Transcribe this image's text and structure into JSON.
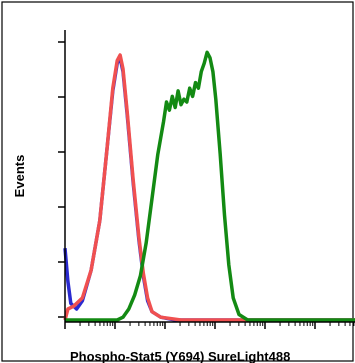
{
  "chart_data": {
    "type": "line",
    "xlabel": "Phospho-Stat5 (Y694) SureLight488",
    "ylabel": "Events",
    "xlim": [
      0,
      1
    ],
    "ylim": [
      0,
      1
    ],
    "grid": false,
    "series": [
      {
        "color": "#2a2ad0",
        "points": [
          [
            0.0,
            0.26
          ],
          [
            0.01,
            0.14
          ],
          [
            0.02,
            0.06
          ],
          [
            0.04,
            0.04
          ],
          [
            0.06,
            0.07
          ],
          [
            0.09,
            0.18
          ],
          [
            0.12,
            0.36
          ],
          [
            0.145,
            0.62
          ],
          [
            0.165,
            0.83
          ],
          [
            0.18,
            0.93
          ],
          [
            0.19,
            0.95
          ],
          [
            0.2,
            0.9
          ],
          [
            0.215,
            0.74
          ],
          [
            0.235,
            0.5
          ],
          [
            0.255,
            0.29
          ],
          [
            0.27,
            0.16
          ],
          [
            0.285,
            0.07
          ],
          [
            0.3,
            0.03
          ],
          [
            0.33,
            0.01
          ],
          [
            0.38,
            0.0
          ],
          [
            1.0,
            0.0
          ]
        ]
      },
      {
        "color": "#f05050",
        "points": [
          [
            0.0,
            0.0
          ],
          [
            0.01,
            0.04
          ],
          [
            0.03,
            0.05
          ],
          [
            0.06,
            0.08
          ],
          [
            0.09,
            0.18
          ],
          [
            0.12,
            0.36
          ],
          [
            0.145,
            0.62
          ],
          [
            0.165,
            0.84
          ],
          [
            0.18,
            0.94
          ],
          [
            0.19,
            0.96
          ],
          [
            0.2,
            0.91
          ],
          [
            0.215,
            0.75
          ],
          [
            0.235,
            0.51
          ],
          [
            0.255,
            0.3
          ],
          [
            0.27,
            0.17
          ],
          [
            0.285,
            0.08
          ],
          [
            0.3,
            0.03
          ],
          [
            0.33,
            0.01
          ],
          [
            0.4,
            0.0
          ],
          [
            1.0,
            0.0
          ]
        ]
      },
      {
        "color": "#138a13",
        "points": [
          [
            0.0,
            0.0
          ],
          [
            0.18,
            0.0
          ],
          [
            0.2,
            0.01
          ],
          [
            0.22,
            0.04
          ],
          [
            0.24,
            0.09
          ],
          [
            0.26,
            0.16
          ],
          [
            0.28,
            0.28
          ],
          [
            0.3,
            0.44
          ],
          [
            0.32,
            0.6
          ],
          [
            0.34,
            0.72
          ],
          [
            0.35,
            0.79
          ],
          [
            0.36,
            0.76
          ],
          [
            0.37,
            0.81
          ],
          [
            0.38,
            0.77
          ],
          [
            0.39,
            0.83
          ],
          [
            0.4,
            0.78
          ],
          [
            0.41,
            0.8
          ],
          [
            0.42,
            0.79
          ],
          [
            0.43,
            0.84
          ],
          [
            0.44,
            0.81
          ],
          [
            0.45,
            0.86
          ],
          [
            0.46,
            0.84
          ],
          [
            0.47,
            0.9
          ],
          [
            0.48,
            0.93
          ],
          [
            0.49,
            0.97
          ],
          [
            0.5,
            0.95
          ],
          [
            0.51,
            0.9
          ],
          [
            0.52,
            0.8
          ],
          [
            0.535,
            0.6
          ],
          [
            0.55,
            0.38
          ],
          [
            0.565,
            0.2
          ],
          [
            0.58,
            0.08
          ],
          [
            0.6,
            0.02
          ],
          [
            0.63,
            0.0
          ],
          [
            1.0,
            0.0
          ]
        ]
      }
    ]
  }
}
